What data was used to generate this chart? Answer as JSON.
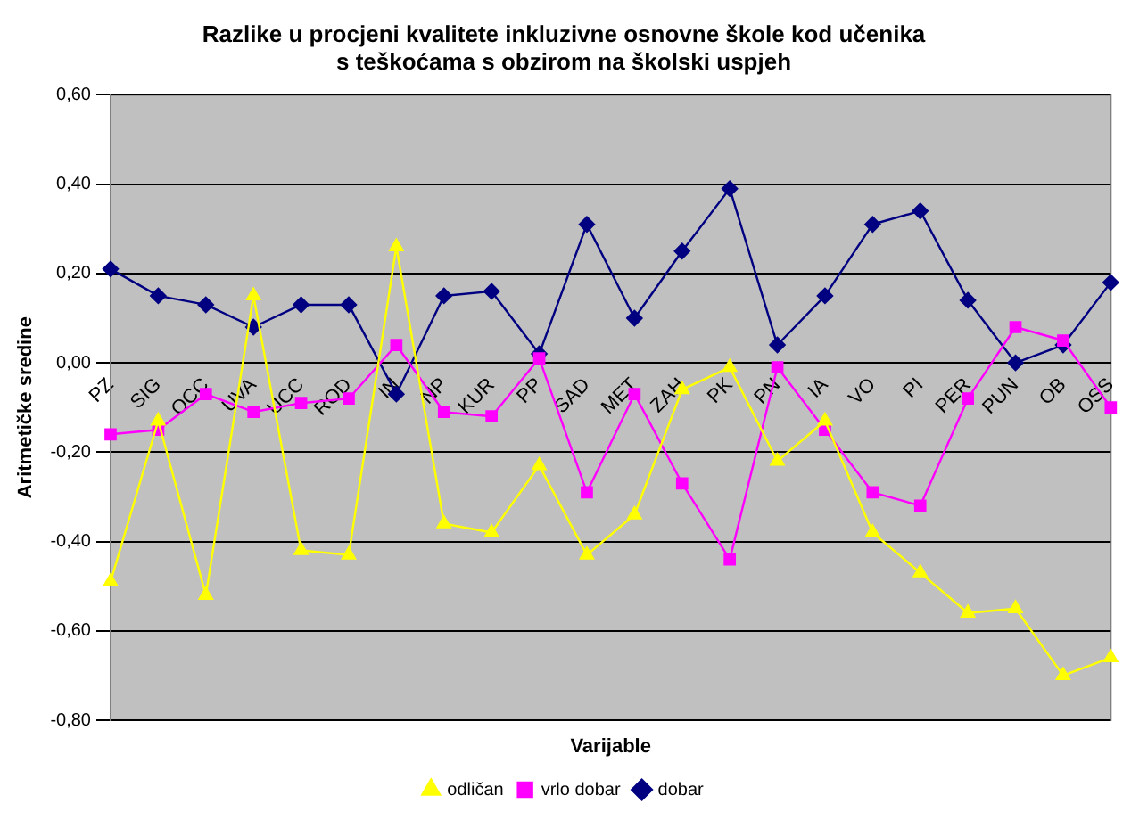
{
  "chart_data": {
    "type": "line",
    "title": "Razlike u procjeni kvalitete inkluzivne osnovne škole kod učenika s teškoćama s obzirom na školski uspjeh",
    "xlabel": "Varijable",
    "ylabel": "Aritmetičke sredine",
    "categories": [
      "PZ",
      "SIG",
      "OCC",
      "UVA",
      "UCC",
      "ROD",
      "IN",
      "NP",
      "KUR",
      "PP",
      "SAD",
      "MET",
      "ZAH",
      "PK",
      "PN",
      "IA",
      "VO",
      "PI",
      "PER",
      "PUN",
      "OB",
      "OSS"
    ],
    "series": [
      {
        "name": "dobar",
        "color": "#000080",
        "marker": "diamond",
        "values": [
          0.21,
          0.15,
          0.13,
          0.08,
          0.13,
          0.13,
          -0.07,
          0.15,
          0.16,
          0.02,
          0.31,
          0.1,
          0.25,
          0.39,
          0.04,
          0.15,
          0.31,
          0.34,
          0.14,
          0.0,
          0.04,
          0.18
        ]
      },
      {
        "name": "vrlo dobar",
        "color": "#ff00ff",
        "marker": "square",
        "values": [
          -0.16,
          -0.15,
          -0.07,
          -0.11,
          -0.09,
          -0.08,
          0.04,
          -0.11,
          -0.12,
          0.01,
          -0.29,
          -0.07,
          -0.27,
          -0.44,
          -0.01,
          -0.15,
          -0.29,
          -0.32,
          -0.08,
          0.08,
          0.05,
          -0.1
        ]
      },
      {
        "name": "odličan",
        "color": "#ffff00",
        "marker": "triangle",
        "values": [
          -0.49,
          -0.13,
          -0.52,
          0.15,
          -0.42,
          -0.43,
          0.26,
          -0.36,
          -0.38,
          -0.23,
          -0.43,
          -0.34,
          -0.06,
          -0.01,
          -0.22,
          -0.13,
          -0.38,
          -0.47,
          -0.56,
          -0.55,
          -0.7,
          -0.66
        ]
      }
    ],
    "ylim": [
      -0.8,
      0.6
    ],
    "yticks": [
      {
        "value": -0.8,
        "label": "-0,80"
      },
      {
        "value": -0.6,
        "label": "-0,60"
      },
      {
        "value": -0.4,
        "label": "-0,40"
      },
      {
        "value": -0.2,
        "label": "-0,20"
      },
      {
        "value": 0,
        "label": "0,00"
      },
      {
        "value": 0.2,
        "label": "0,20"
      },
      {
        "value": 0.4,
        "label": "0,40"
      },
      {
        "value": 0.6,
        "label": "0,60"
      }
    ],
    "grid": "y",
    "legend": "bottom",
    "line_style": "solid"
  }
}
